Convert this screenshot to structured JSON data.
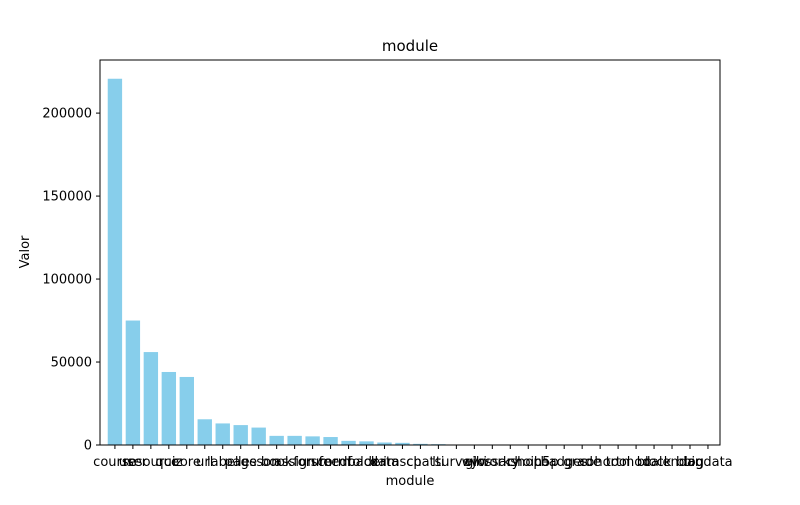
{
  "chart_data": {
    "type": "bar",
    "title": "module",
    "xlabel": "module",
    "ylabel": "Valor",
    "ylim": [
      0,
      232000
    ],
    "yticks": [
      0,
      50000,
      100000,
      150000,
      200000
    ],
    "categories": [
      "course",
      "user",
      "resource",
      "quiz",
      "core",
      "url",
      "label",
      "page",
      "lesson",
      "book",
      "assign",
      "forum",
      "scorm",
      "feedback",
      "folder",
      "data",
      "imscp",
      "chat",
      "lti",
      "survey",
      "wiki",
      "glossary",
      "workshop",
      "choice",
      "h5p",
      "badges",
      "grade",
      "cohort",
      "tool",
      "mod",
      "block",
      "calendar",
      "blog",
      "bigdata"
    ],
    "values": [
      220700,
      75000,
      56000,
      44000,
      41000,
      15500,
      13000,
      12000,
      10500,
      5500,
      5500,
      5200,
      4800,
      2500,
      2200,
      1500,
      1300,
      700,
      500,
      300,
      200,
      150,
      120,
      100,
      80,
      60,
      50,
      40,
      30,
      25,
      20,
      15,
      10,
      5
    ],
    "bar_color": "#87ceeb",
    "grid": false,
    "legend": "none"
  }
}
